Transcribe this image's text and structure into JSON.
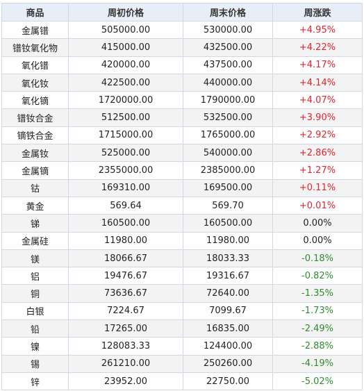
{
  "headers": [
    "商品",
    "周初价格",
    "周末价格",
    "周涨跌"
  ],
  "colors": {
    "up": "#e0242c",
    "down": "#2e8b2e",
    "flat": "#222222",
    "header_bg": "#e8eef8"
  },
  "rows": [
    {
      "name": "金属镨",
      "start": "505000.00",
      "end": "530000.00",
      "change": "+4.95%",
      "dir": "up"
    },
    {
      "name": "镨钕氧化物",
      "start": "415000.00",
      "end": "432500.00",
      "change": "+4.22%",
      "dir": "up"
    },
    {
      "name": "氧化镨",
      "start": "420000.00",
      "end": "437500.00",
      "change": "+4.17%",
      "dir": "up"
    },
    {
      "name": "氧化钕",
      "start": "422500.00",
      "end": "440000.00",
      "change": "+4.14%",
      "dir": "up"
    },
    {
      "name": "氧化镝",
      "start": "1720000.00",
      "end": "1790000.00",
      "change": "+4.07%",
      "dir": "up"
    },
    {
      "name": "镨钕合金",
      "start": "512500.00",
      "end": "532500.00",
      "change": "+3.90%",
      "dir": "up"
    },
    {
      "name": "镝铁合金",
      "start": "1715000.00",
      "end": "1765000.00",
      "change": "+2.92%",
      "dir": "up"
    },
    {
      "name": "金属钕",
      "start": "525000.00",
      "end": "540000.00",
      "change": "+2.86%",
      "dir": "up"
    },
    {
      "name": "金属镝",
      "start": "2355000.00",
      "end": "2385000.00",
      "change": "+1.27%",
      "dir": "up"
    },
    {
      "name": "钴",
      "start": "169310.00",
      "end": "169500.00",
      "change": "+0.11%",
      "dir": "up"
    },
    {
      "name": "黄金",
      "start": "569.64",
      "end": "569.70",
      "change": "+0.01%",
      "dir": "up"
    },
    {
      "name": "锑",
      "start": "160500.00",
      "end": "160500.00",
      "change": "0.00%",
      "dir": "flat"
    },
    {
      "name": "金属硅",
      "start": "11980.00",
      "end": "11980.00",
      "change": "0.00%",
      "dir": "flat"
    },
    {
      "name": "镁",
      "start": "18066.67",
      "end": "18033.33",
      "change": "-0.18%",
      "dir": "down"
    },
    {
      "name": "铝",
      "start": "19476.67",
      "end": "19316.67",
      "change": "-0.82%",
      "dir": "down"
    },
    {
      "name": "铜",
      "start": "73636.67",
      "end": "72640.00",
      "change": "-1.35%",
      "dir": "down"
    },
    {
      "name": "白银",
      "start": "7224.67",
      "end": "7099.67",
      "change": "-1.73%",
      "dir": "down"
    },
    {
      "name": "铅",
      "start": "17265.00",
      "end": "16835.00",
      "change": "-2.49%",
      "dir": "down"
    },
    {
      "name": "镍",
      "start": "128083.33",
      "end": "124400.00",
      "change": "-2.88%",
      "dir": "down"
    },
    {
      "name": "锡",
      "start": "261210.00",
      "end": "250260.00",
      "change": "-4.19%",
      "dir": "down"
    },
    {
      "name": "锌",
      "start": "23952.00",
      "end": "22750.00",
      "change": "-5.02%",
      "dir": "down"
    }
  ]
}
